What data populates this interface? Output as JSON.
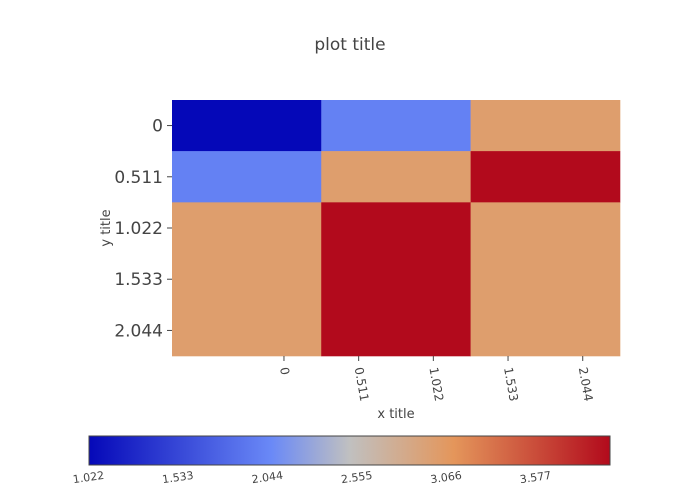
{
  "chart_data": {
    "type": "heatmap",
    "title": "plot title",
    "xlabel": "x title",
    "ylabel": "y title",
    "x_ticks": [
      "0",
      "0.511",
      "1.022",
      "1.533",
      "2.044"
    ],
    "y_ticks": [
      "0",
      "0.511",
      "1.022",
      "1.533",
      "2.044"
    ],
    "xlim": [
      -0.766,
      2.299
    ],
    "ylim": [
      -0.255,
      2.299
    ],
    "x_edges": [
      -0.766,
      0.255,
      1.277,
      2.299
    ],
    "y_edges": [
      -0.255,
      0.255,
      0.766,
      2.299
    ],
    "z": [
      [
        1,
        2,
        3
      ],
      [
        2,
        3,
        4
      ],
      [
        3,
        4,
        3
      ]
    ],
    "colorbar": {
      "range": [
        1.022,
        4.0
      ],
      "ticks": [
        "1.022",
        "1.533",
        "2.044",
        "2.555",
        "3.066",
        "3.577"
      ],
      "orientation": "horizontal",
      "colorscale": [
        [
          0.0,
          "#0508b8"
        ],
        [
          0.35,
          "#6a89f7"
        ],
        [
          0.5,
          "#c0c0c0"
        ],
        [
          0.7,
          "#e4965b"
        ],
        [
          1.0,
          "#b20a1c"
        ]
      ]
    }
  }
}
